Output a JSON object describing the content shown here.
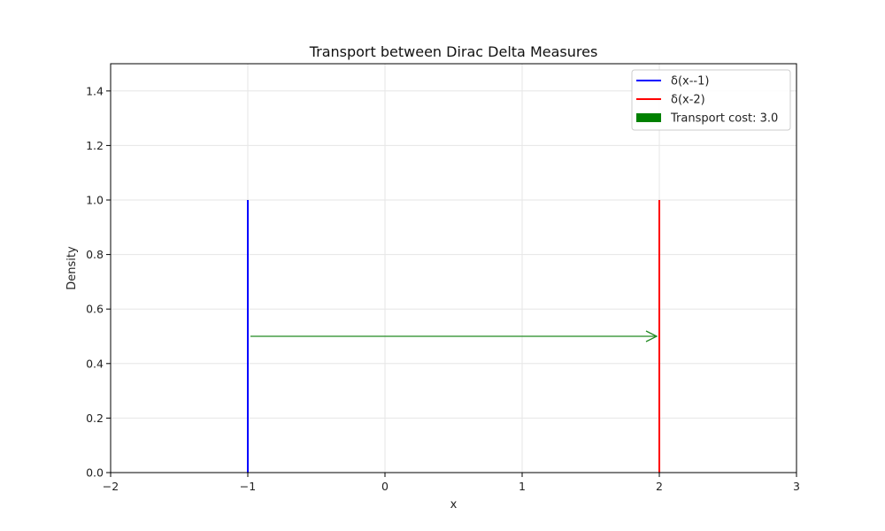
{
  "chart_data": {
    "type": "line",
    "title": "Transport between Dirac Delta Measures",
    "xlabel": "x",
    "ylabel": "Density",
    "xlim": [
      -2,
      3
    ],
    "ylim": [
      0,
      1.5
    ],
    "xticks": [
      -2,
      -1,
      0,
      1,
      2,
      3
    ],
    "xtick_labels": [
      "−2",
      "−1",
      "0",
      "1",
      "2",
      "3"
    ],
    "yticks": [
      0.0,
      0.2,
      0.4,
      0.6,
      0.8,
      1.0,
      1.2,
      1.4
    ],
    "ytick_labels": [
      "0.0",
      "0.2",
      "0.4",
      "0.6",
      "0.8",
      "1.0",
      "1.2",
      "1.4"
    ],
    "grid": true,
    "legend_position": "top-right",
    "series": [
      {
        "name": "δ(x--1)",
        "x": [
          -1,
          -1
        ],
        "y": [
          0,
          1
        ],
        "color": "#0000ff"
      },
      {
        "name": "δ(x-2)",
        "x": [
          2,
          2
        ],
        "y": [
          0,
          1
        ],
        "color": "#ff0000"
      }
    ],
    "arrow": {
      "from": [
        -1,
        0.5
      ],
      "to": [
        2,
        0.5
      ],
      "color": "#228b22"
    },
    "legend": [
      {
        "label": "δ(x--1)",
        "kind": "line",
        "color": "#0000ff"
      },
      {
        "label": "δ(x-2)",
        "kind": "line",
        "color": "#ff0000"
      },
      {
        "label": "Transport cost: 3.0",
        "kind": "patch",
        "color": "#008000"
      }
    ]
  }
}
